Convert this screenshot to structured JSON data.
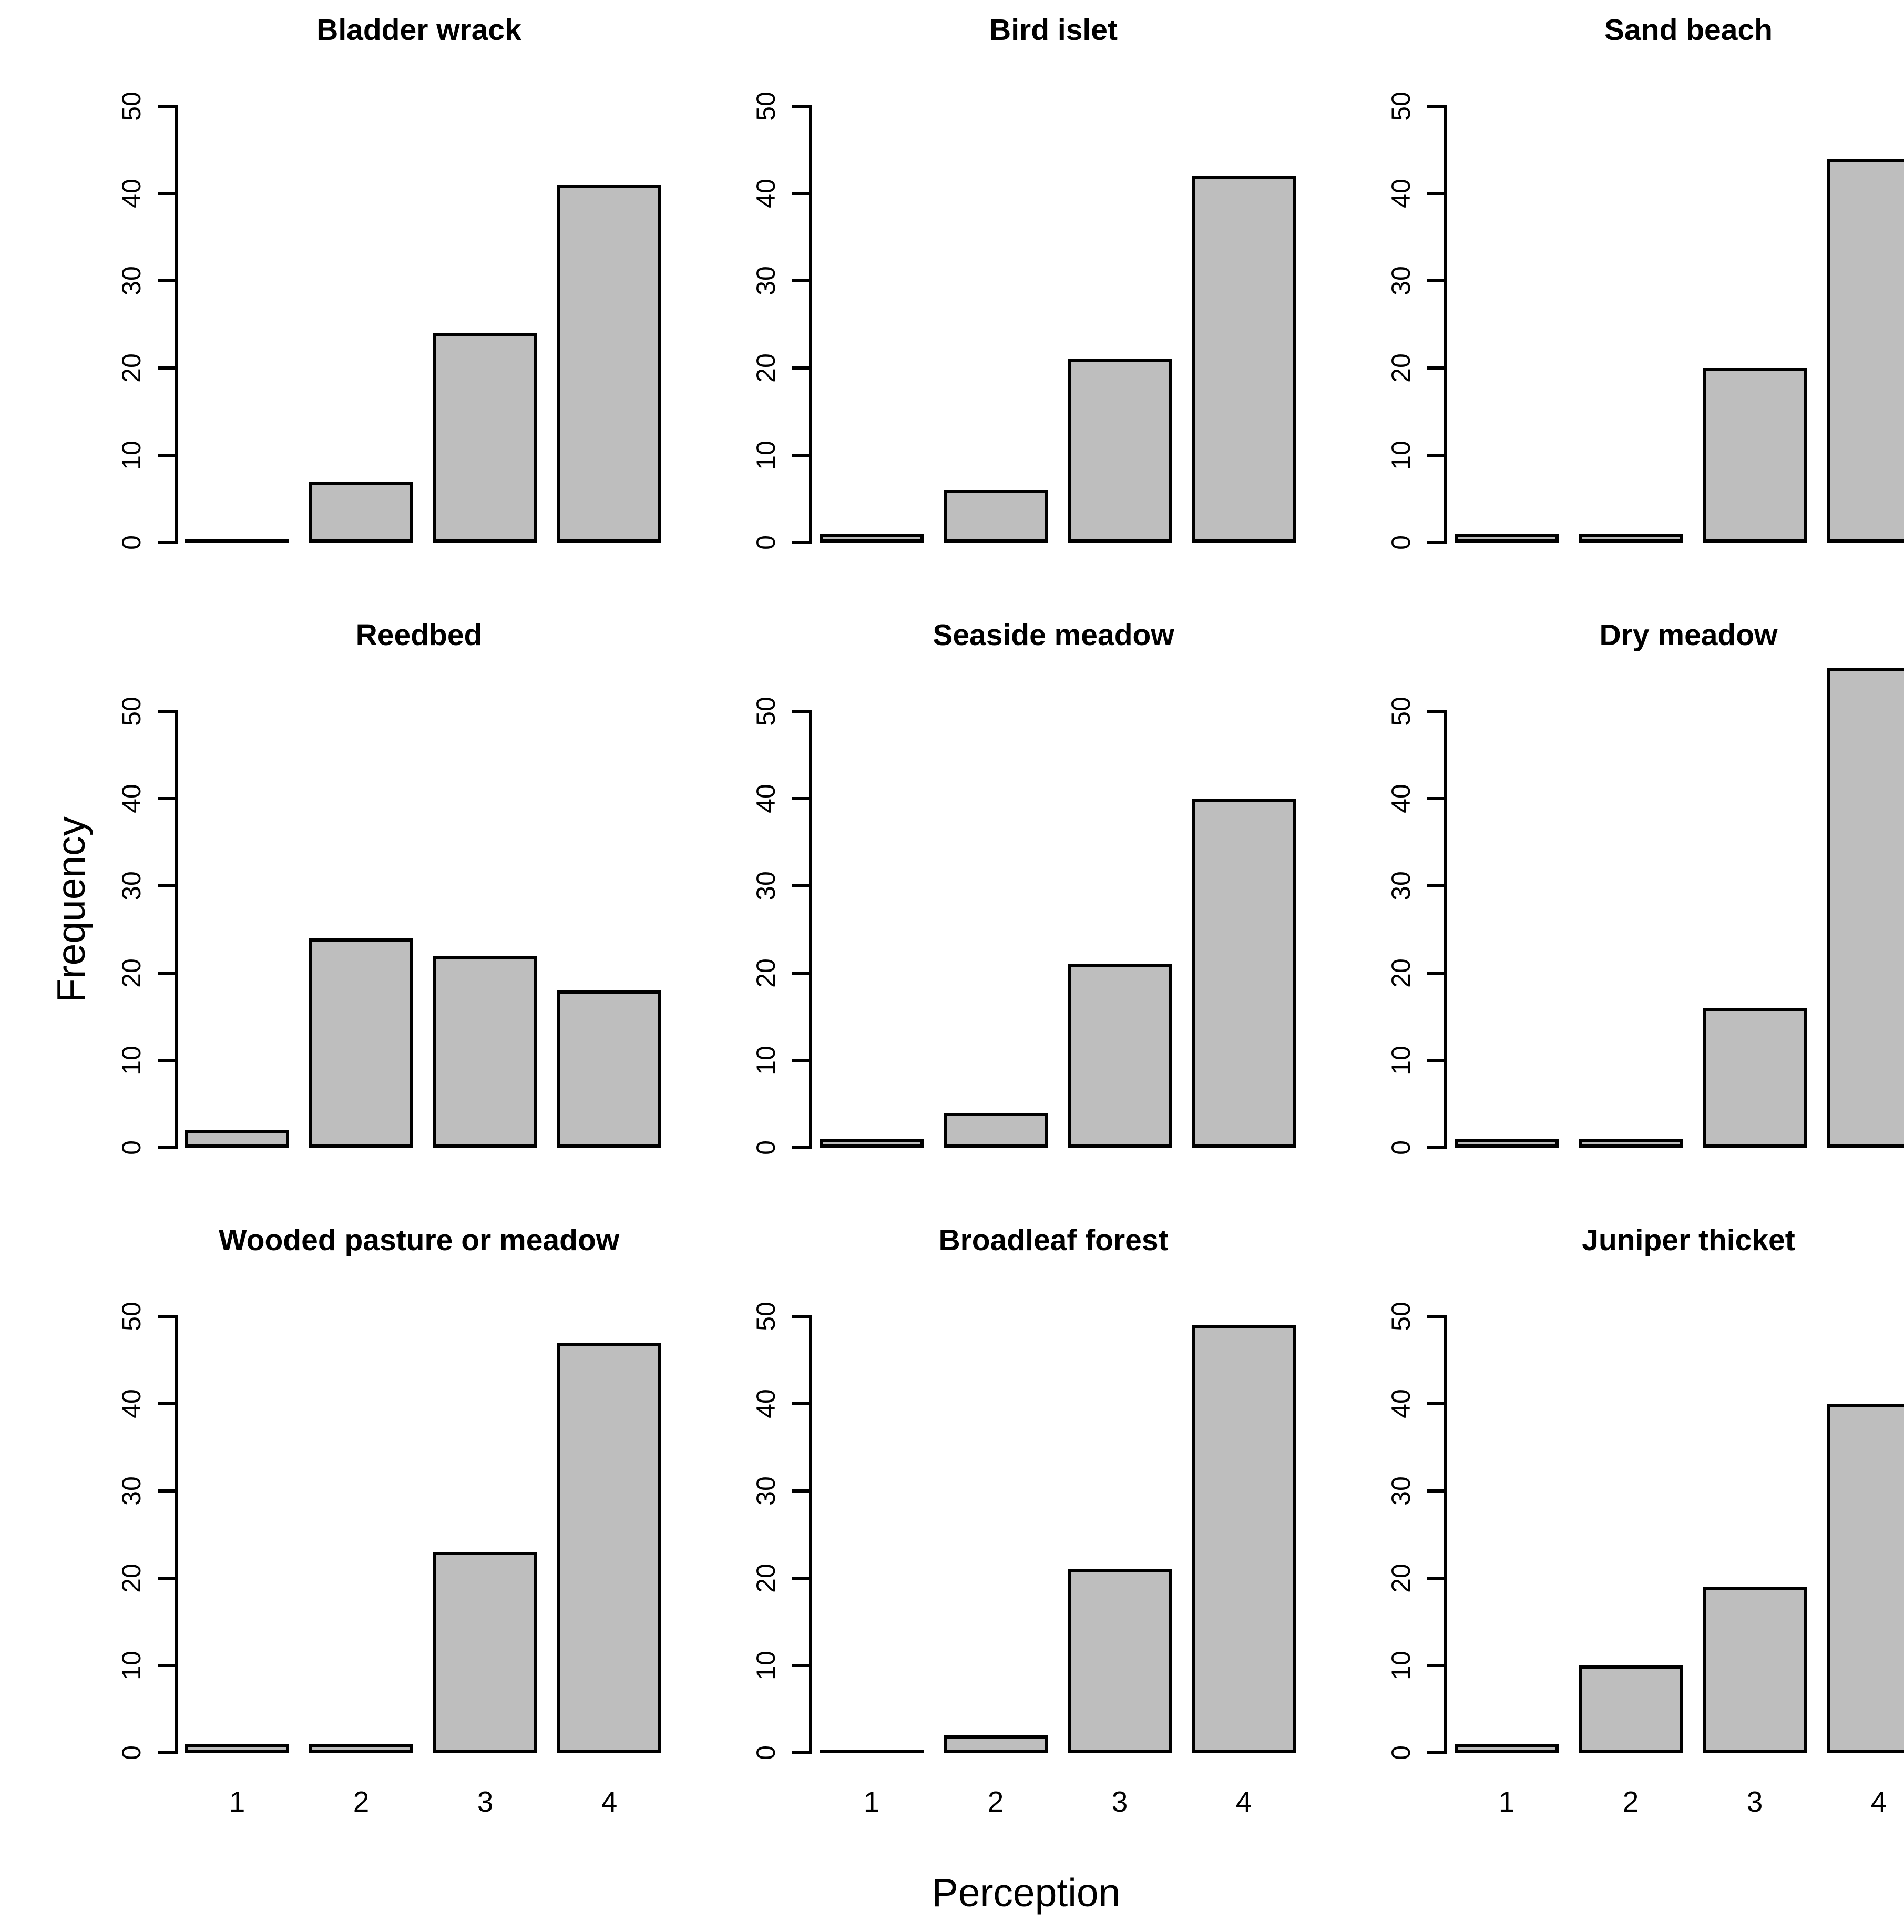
{
  "figure": {
    "ylabel": "Frequency",
    "xlabel": "Perception",
    "y_ticks": [
      0,
      10,
      20,
      30,
      40,
      50
    ],
    "categories": [
      "1",
      "2",
      "3",
      "4"
    ],
    "bar_fill": "#BEBEBE",
    "bar_border": "#000000",
    "layout": {
      "rows": 3,
      "cols": 3,
      "grid": "off",
      "x_tick_labels_bottom_row_only": true
    }
  },
  "chart_data": [
    {
      "type": "bar",
      "title": "Bladder wrack",
      "categories": [
        "1",
        "2",
        "3",
        "4"
      ],
      "values": [
        0,
        7,
        24,
        41
      ],
      "xlabel": "Perception",
      "ylabel": "Frequency",
      "ylim": [
        0,
        50
      ]
    },
    {
      "type": "bar",
      "title": "Bird islet",
      "categories": [
        "1",
        "2",
        "3",
        "4"
      ],
      "values": [
        1,
        6,
        21,
        42
      ],
      "xlabel": "Perception",
      "ylabel": "Frequency",
      "ylim": [
        0,
        50
      ]
    },
    {
      "type": "bar",
      "title": "Sand beach",
      "categories": [
        "1",
        "2",
        "3",
        "4"
      ],
      "values": [
        1,
        1,
        20,
        44
      ],
      "xlabel": "Perception",
      "ylabel": "Frequency",
      "ylim": [
        0,
        50
      ]
    },
    {
      "type": "bar",
      "title": "Reedbed",
      "categories": [
        "1",
        "2",
        "3",
        "4"
      ],
      "values": [
        2,
        24,
        22,
        18
      ],
      "xlabel": "Perception",
      "ylabel": "Frequency",
      "ylim": [
        0,
        50
      ]
    },
    {
      "type": "bar",
      "title": "Seaside meadow",
      "categories": [
        "1",
        "2",
        "3",
        "4"
      ],
      "values": [
        1,
        4,
        21,
        40
      ],
      "xlabel": "Perception",
      "ylabel": "Frequency",
      "ylim": [
        0,
        50
      ]
    },
    {
      "type": "bar",
      "title": "Dry meadow",
      "categories": [
        "1",
        "2",
        "3",
        "4"
      ],
      "values": [
        1,
        1,
        16,
        55
      ],
      "xlabel": "Perception",
      "ylabel": "Frequency",
      "ylim": [
        0,
        50
      ]
    },
    {
      "type": "bar",
      "title": "Wooded pasture or meadow",
      "categories": [
        "1",
        "2",
        "3",
        "4"
      ],
      "values": [
        1,
        1,
        23,
        47
      ],
      "xlabel": "Perception",
      "ylabel": "Frequency",
      "ylim": [
        0,
        50
      ]
    },
    {
      "type": "bar",
      "title": "Broadleaf forest",
      "categories": [
        "1",
        "2",
        "3",
        "4"
      ],
      "values": [
        0,
        2,
        21,
        49
      ],
      "xlabel": "Perception",
      "ylabel": "Frequency",
      "ylim": [
        0,
        50
      ]
    },
    {
      "type": "bar",
      "title": "Juniper thicket",
      "categories": [
        "1",
        "2",
        "3",
        "4"
      ],
      "values": [
        1,
        10,
        19,
        40
      ],
      "xlabel": "Perception",
      "ylabel": "Frequency",
      "ylim": [
        0,
        50
      ]
    }
  ]
}
